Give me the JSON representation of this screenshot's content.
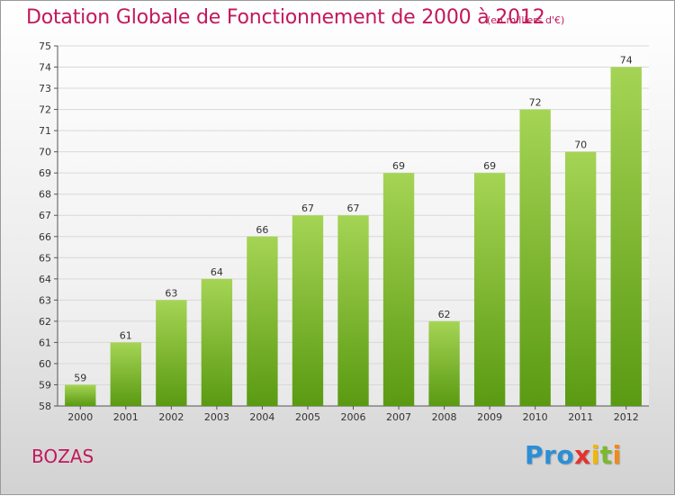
{
  "header": {
    "title": "Dotation Globale de Fonctionnement de 2000 à 2012",
    "subtitle": "(en milliers d'€)"
  },
  "footer": {
    "commune": "BOZAS",
    "logo": {
      "text": "Proxiti",
      "letters": [
        "Pro",
        "x",
        "i",
        "t",
        "i"
      ]
    }
  },
  "colors": {
    "title": "#c2185b",
    "bar_light": "#a5d454",
    "bar_dark": "#5a9a12",
    "grid": "#d8d8d8"
  },
  "chart_data": {
    "type": "bar",
    "title": "Dotation Globale de Fonctionnement de 2000 à 2012",
    "subtitle": "(en milliers d'€)",
    "xlabel": "",
    "ylabel": "",
    "categories": [
      "2000",
      "2001",
      "2002",
      "2003",
      "2004",
      "2005",
      "2006",
      "2007",
      "2008",
      "2009",
      "2010",
      "2011",
      "2012"
    ],
    "values": [
      59,
      61,
      63,
      64,
      66,
      67,
      67,
      69,
      62,
      69,
      72,
      70,
      74
    ],
    "ylim": [
      58,
      75
    ],
    "yticks": [
      58,
      59,
      60,
      61,
      62,
      63,
      64,
      65,
      66,
      67,
      68,
      69,
      70,
      71,
      72,
      73,
      74,
      75
    ],
    "grid": true,
    "legend": "none"
  }
}
